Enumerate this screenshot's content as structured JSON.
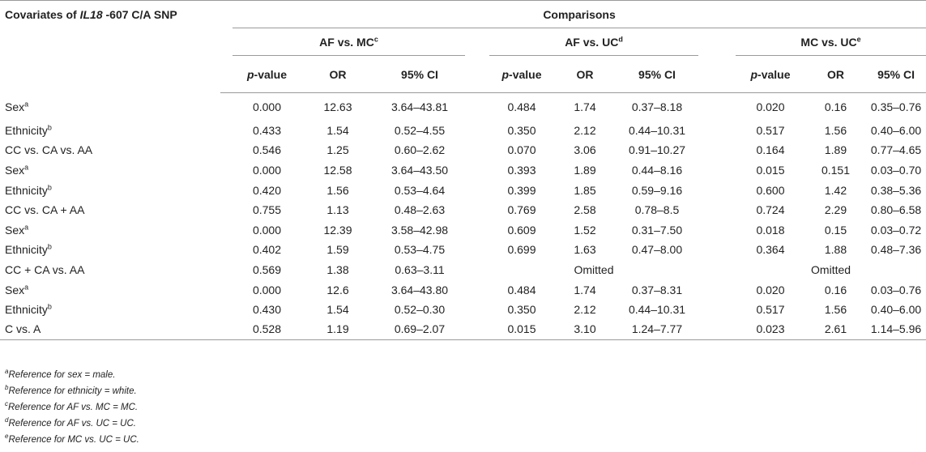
{
  "header": {
    "covariates_prefix": "Covariates of ",
    "gene": "IL18",
    "covariates_suffix": " -607 C/A SNP",
    "comparisons": "Comparisons",
    "groups": [
      {
        "label": "AF vs. MC",
        "sup": "c"
      },
      {
        "label": "AF vs. UC",
        "sup": "d"
      },
      {
        "label": "MC vs. UC",
        "sup": "e"
      }
    ],
    "col_p_italic": "p",
    "col_p_suffix": "-value",
    "col_or": "OR",
    "col_ci": "95% CI"
  },
  "rows": [
    {
      "label": "Sex",
      "sup": "a",
      "cells": [
        "0.000",
        "12.63",
        "3.64–43.81",
        "0.484",
        "1.74",
        "0.37–8.18",
        "0.020",
        "0.16",
        "0.35–0.76"
      ]
    },
    {
      "label": "Ethnicity",
      "sup": "b",
      "cells": [
        "0.433",
        "1.54",
        "0.52–4.55",
        "0.350",
        "2.12",
        "0.44–10.31",
        "0.517",
        "1.56",
        "0.40–6.00"
      ]
    },
    {
      "label": "CC vs. CA vs. AA",
      "sup": "",
      "cells": [
        "0.546",
        "1.25",
        "0.60–2.62",
        "0.070",
        "3.06",
        "0.91–10.27",
        "0.164",
        "1.89",
        "0.77–4.65"
      ]
    },
    {
      "label": "Sex",
      "sup": "a",
      "cells": [
        "0.000",
        "12.58",
        "3.64–43.50",
        "0.393",
        "1.89",
        "0.44–8.16",
        "0.015",
        "0.151",
        "0.03–0.70"
      ]
    },
    {
      "label": "Ethnicity",
      "sup": "b",
      "cells": [
        "0.420",
        "1.56",
        "0.53–4.64",
        "0.399",
        "1.85",
        "0.59–9.16",
        "0.600",
        "1.42",
        "0.38–5.36"
      ]
    },
    {
      "label": "CC vs. CA + AA",
      "sup": "",
      "cells": [
        "0.755",
        "1.13",
        "0.48–2.63",
        "0.769",
        "2.58",
        "0.78–8.5",
        "0.724",
        "2.29",
        "0.80–6.58"
      ]
    },
    {
      "label": "Sex",
      "sup": "a",
      "cells": [
        "0.000",
        "12.39",
        "3.58–42.98",
        "0.609",
        "1.52",
        "0.31–7.50",
        "0.018",
        "0.15",
        "0.03–0.72"
      ]
    },
    {
      "label": "Ethnicity",
      "sup": "b",
      "cells": [
        "0.402",
        "1.59",
        "0.53–4.75",
        "0.699",
        "1.63",
        "0.47–8.00",
        "0.364",
        "1.88",
        "0.48–7.36"
      ]
    },
    {
      "label": "CC + CA vs. AA",
      "sup": "",
      "cells": [
        "0.569",
        "1.38",
        "0.63–3.11"
      ],
      "omitted": [
        "Omitted",
        "Omitted"
      ]
    },
    {
      "label": "Sex",
      "sup": "a",
      "cells": [
        "0.000",
        "12.6",
        "3.64–43.80",
        "0.484",
        "1.74",
        "0.37–8.31",
        "0.020",
        "0.16",
        "0.03–0.76"
      ]
    },
    {
      "label": "Ethnicity",
      "sup": "b",
      "cells": [
        "0.430",
        "1.54",
        "0.52–0.30",
        "0.350",
        "2.12",
        "0.44–10.31",
        "0.517",
        "1.56",
        "0.40–6.00"
      ]
    },
    {
      "label": "C vs. A",
      "sup": "",
      "cells": [
        "0.528",
        "1.19",
        "0.69–2.07",
        "0.015",
        "3.10",
        "1.24–7.77",
        "0.023",
        "2.61",
        "1.14–5.96"
      ]
    }
  ],
  "footnotes": [
    {
      "sup": "a",
      "text": "Reference for sex = male."
    },
    {
      "sup": "b",
      "text": "Reference for ethnicity = white."
    },
    {
      "sup": "c",
      "text": "Reference for AF vs. MC = MC."
    },
    {
      "sup": "d",
      "text": "Reference for AF vs. UC = UC."
    },
    {
      "sup": "e",
      "text": "Reference for MC vs. UC = UC."
    }
  ]
}
